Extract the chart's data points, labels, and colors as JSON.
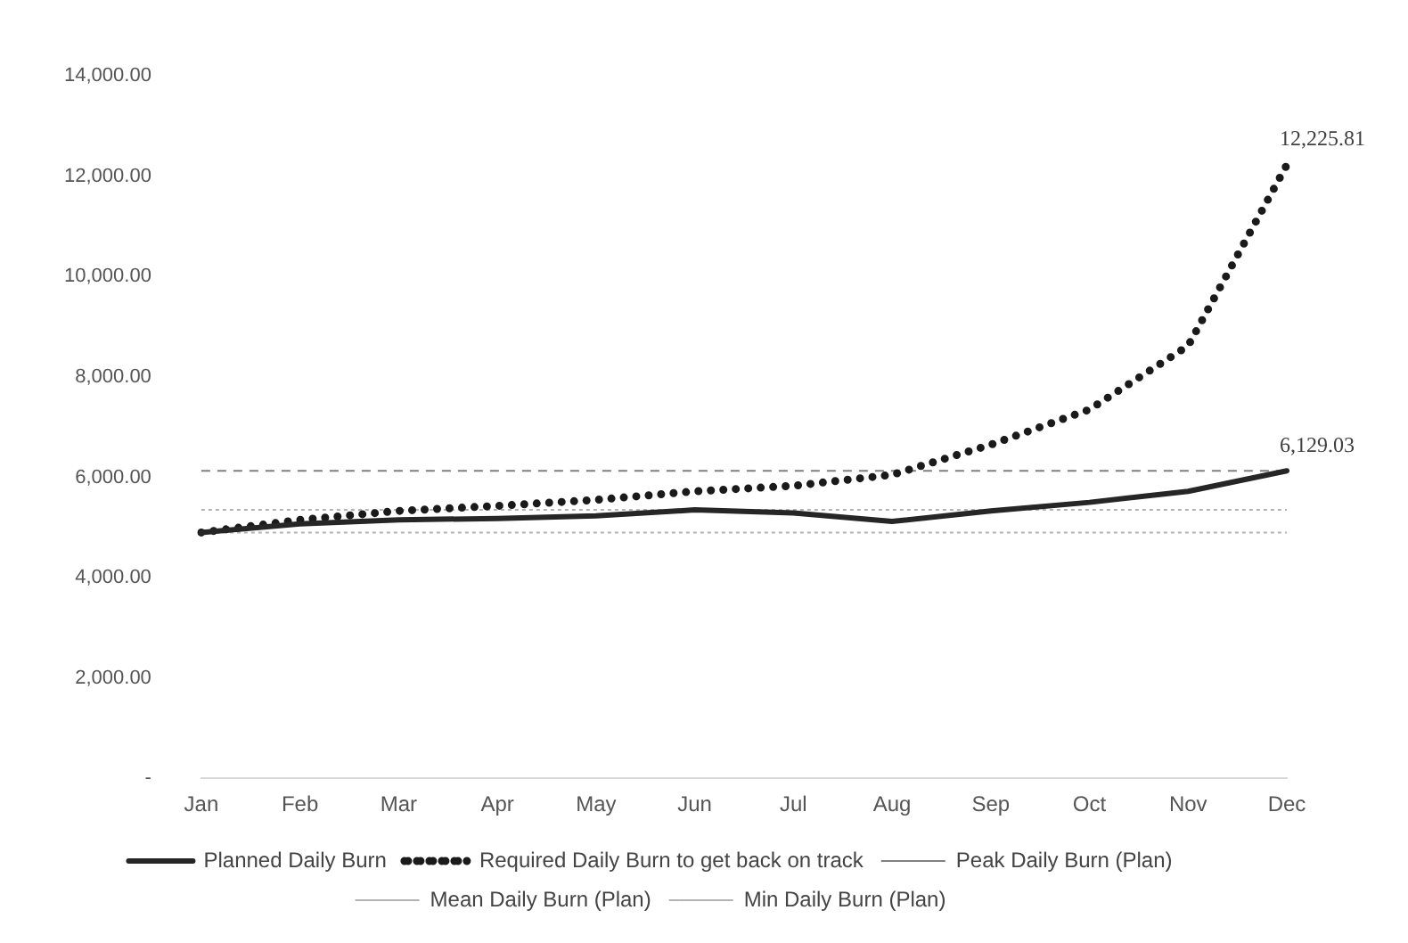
{
  "chart_data": {
    "type": "line",
    "categories": [
      "Jan",
      "Feb",
      "Mar",
      "Apr",
      "May",
      "Jun",
      "Jul",
      "Aug",
      "Sep",
      "Oct",
      "Nov",
      "Dec"
    ],
    "series": [
      {
        "name": "Planned Daily Burn",
        "color": "#262626",
        "line_style": "solid",
        "values": [
          4900,
          5070,
          5150,
          5180,
          5230,
          5350,
          5290,
          5120,
          5330,
          5500,
          5720,
          6129.03
        ],
        "value_labels": [
          null,
          null,
          null,
          null,
          null,
          null,
          null,
          null,
          null,
          null,
          null,
          "6,129.03"
        ]
      },
      {
        "name": "Required Daily Burn to get back on track",
        "color": "#1a1a1a",
        "line_style": "dotted",
        "values": [
          4900,
          5150,
          5330,
          5430,
          5550,
          5720,
          5830,
          6050,
          6650,
          7350,
          8620,
          12225.81
        ],
        "value_labels": [
          null,
          null,
          null,
          null,
          null,
          null,
          null,
          null,
          null,
          null,
          null,
          "12,225.81"
        ]
      }
    ],
    "ref_lines": [
      {
        "axis": "y",
        "value": 6129.03,
        "label": "Peak Daily Burn (Plan)",
        "color": "#808080",
        "line_style": "dashed"
      },
      {
        "axis": "y",
        "value": 5350,
        "label": "Mean Daily Burn (Plan)",
        "color": "#b3b3b3",
        "line_style": "dotted"
      },
      {
        "axis": "y",
        "value": 4900,
        "label": "Min Daily Burn (Plan)",
        "color": "#b3b3b3",
        "line_style": "dotted"
      }
    ],
    "ylim": [
      0,
      14000
    ],
    "yticks": [
      {
        "value": 0,
        "label": "-"
      },
      {
        "value": 2000,
        "label": "2,000.00"
      },
      {
        "value": 4000,
        "label": "4,000.00"
      },
      {
        "value": 6000,
        "label": "6,000.00"
      },
      {
        "value": 8000,
        "label": "8,000.00"
      },
      {
        "value": 10000,
        "label": "10,000.00"
      },
      {
        "value": 12000,
        "label": "12,000.00"
      },
      {
        "value": 14000,
        "label": "14,000.00"
      }
    ],
    "grid": false,
    "legend": "bottom",
    "marker": "none"
  }
}
